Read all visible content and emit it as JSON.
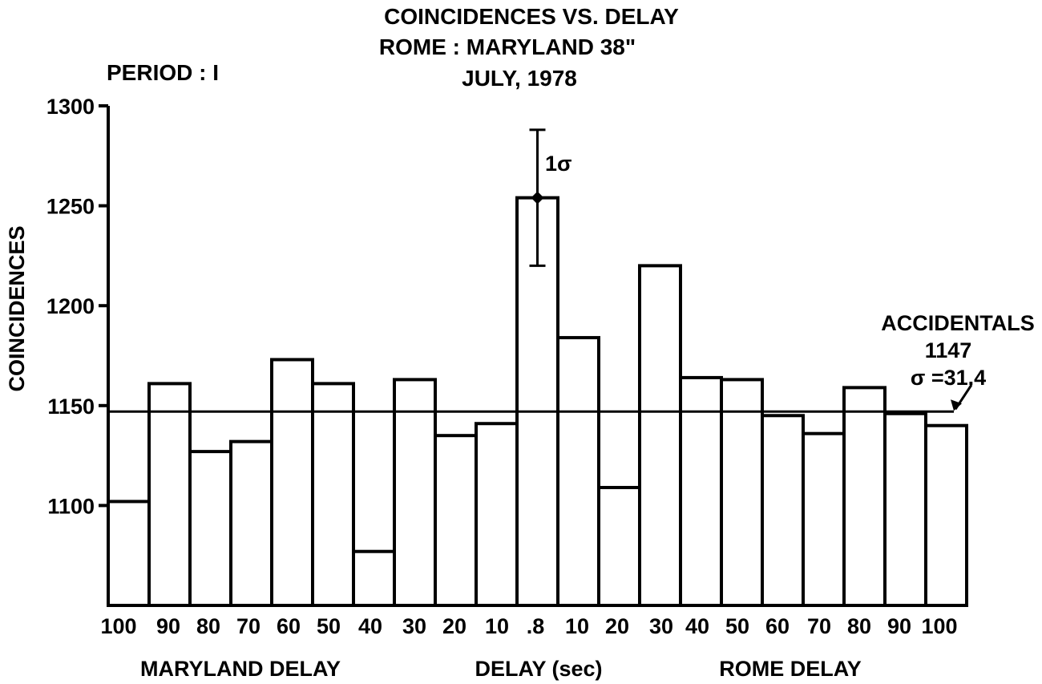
{
  "chart_data": {
    "type": "bar",
    "title": [
      "COINCIDENCES VS. DELAY",
      "ROME : MARYLAND 38\"",
      "JULY, 1978"
    ],
    "period_label": "PERIOD : I",
    "ylabel": "COINCIDENCES",
    "xlabel": "DELAY (sec)",
    "left_group_label": "MARYLAND DELAY",
    "right_group_label": "ROME DELAY",
    "ylim": [
      1050,
      1300
    ],
    "yticks": [
      1100,
      1150,
      1200,
      1250,
      1300
    ],
    "categories": [
      "100",
      "90",
      "80",
      "70",
      "60",
      "50",
      "40",
      "30",
      "20",
      "10",
      ".8",
      "10",
      "20",
      "30",
      "40",
      "50",
      "60",
      "70",
      "80",
      "90",
      "100"
    ],
    "values": [
      1102,
      1161,
      1127,
      1132,
      1173,
      1161,
      1077,
      1163,
      1135,
      1141,
      1254,
      1184,
      1109,
      1220,
      1164,
      1163,
      1145,
      1136,
      1159,
      1146,
      1140
    ],
    "accidentals": {
      "label": "ACCIDENTALS",
      "value": 1147,
      "value_text": "1147",
      "sigma_text": "σ =31.4"
    },
    "error_bar": {
      "category_index": 10,
      "center": 1254,
      "low": 1220,
      "high": 1288,
      "label": "1σ"
    }
  }
}
